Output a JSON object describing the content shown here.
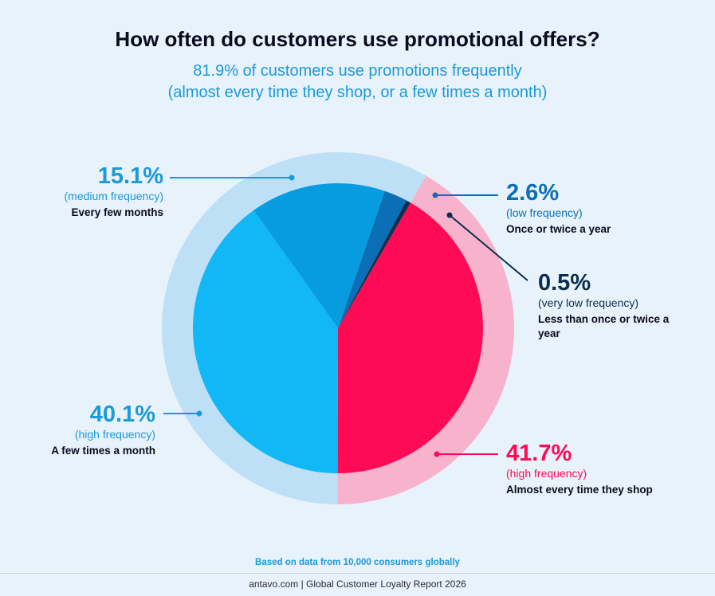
{
  "title": "How often do customers use promotional offers?",
  "subtitle_line1": "81.9% of customers use promotions frequently",
  "subtitle_line2": "(almost every time they shop, or a few times a month)",
  "chart_data": {
    "type": "pie",
    "title": "How often do customers use promotional offers?",
    "subtitle": "81.9% of customers use promotions frequently (almost every time they shop, or a few times a month)",
    "unit": "%",
    "slices": [
      {
        "value": 41.7,
        "label": "41.7%",
        "frequency": "(high frequency)",
        "description": "Almost every time they shop",
        "color": "#ff0a54",
        "ring_color": "#f7b3cb"
      },
      {
        "value": 40.1,
        "label": "40.1%",
        "frequency": "(high frequency)",
        "description": "A few times a month",
        "color": "#12b8f5",
        "ring_color": "#bde0f7"
      },
      {
        "value": 15.1,
        "label": "15.1%",
        "frequency": "(medium frequency)",
        "description": "Every few months",
        "color": "#079be0",
        "ring_color": "#bde0f7"
      },
      {
        "value": 2.6,
        "label": "2.6%",
        "frequency": "(low frequency)",
        "description": "Once or twice a year",
        "color": "#0a6fb4",
        "ring_color": "#bde0f7"
      },
      {
        "value": 0.5,
        "label": "0.5%",
        "frequency": "(very low frequency)",
        "description": "Less than once or twice a year",
        "color": "#0c2d4d",
        "ring_color": "#bde0f7"
      }
    ],
    "label_colors": {
      "pink": "#ff0a54",
      "blue": "#1a9ad9",
      "dark": "#0c2d4d",
      "mid": "#0a6fb4"
    }
  },
  "footnote": "Based on data from 10,000 consumers globally",
  "footer": "antavo.com  |  Global Customer Loyalty Report 2026"
}
